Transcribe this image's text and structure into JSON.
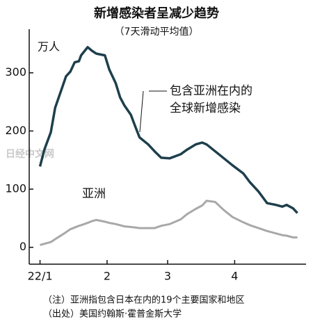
{
  "chart_data": {
    "type": "line",
    "title": "新增感染者呈减少趋势",
    "subtitle": "（7天滑动平均值）",
    "y_label": "万人",
    "x": [
      0,
      2,
      5,
      7,
      10,
      12,
      14,
      16,
      18,
      19,
      22,
      24,
      26,
      30,
      32,
      35,
      37,
      39,
      42,
      44,
      46,
      50,
      53,
      56,
      60,
      65,
      68,
      72,
      75,
      77,
      81,
      85,
      89,
      94,
      97,
      101,
      105,
      109,
      112,
      114,
      117,
      119
    ],
    "series": [
      {
        "name": "包含亚洲在内的全球新增感染",
        "color": "#1e3f4c",
        "values": [
          139,
          168,
          198,
          240,
          272,
          294,
          302,
          318,
          320,
          330,
          344,
          338,
          333,
          330,
          306,
          282,
          258,
          244,
          228,
          208,
          189,
          177,
          165,
          154,
          153,
          160,
          168,
          177,
          180,
          177,
          165,
          153,
          141,
          127,
          112,
          96,
          76,
          73,
          70,
          73,
          67,
          59
        ]
      },
      {
        "name": "亚洲",
        "color": "#a8a8a8",
        "values": [
          4,
          6,
          9,
          14,
          21,
          26,
          31,
          34,
          37,
          38,
          42,
          45,
          47,
          44,
          42,
          40,
          38,
          36,
          35,
          34,
          33,
          33,
          33,
          37,
          40,
          48,
          57,
          66,
          72,
          80,
          78,
          64,
          52,
          43,
          38,
          33,
          28,
          24,
          21,
          20,
          17,
          17
        ]
      }
    ],
    "annotations": [
      "包含亚洲在内的",
      "全球新增感染",
      "亚洲"
    ],
    "xlim": [
      -5,
      123
    ],
    "xticks": [
      {
        "value": 0,
        "label": "22/1"
      },
      {
        "value": 31,
        "label": "2"
      },
      {
        "value": 59,
        "label": "3"
      },
      {
        "value": 90,
        "label": "4"
      }
    ],
    "ylim": [
      -29,
      375
    ],
    "yticks": [
      0,
      100,
      200,
      300
    ],
    "grid": false,
    "notes": [
      "（注）亚洲指包含日本在内的19个主要国家和地区",
      "（出处）美国约翰斯·霍普金斯大学"
    ],
    "watermark": "日经中文网"
  }
}
